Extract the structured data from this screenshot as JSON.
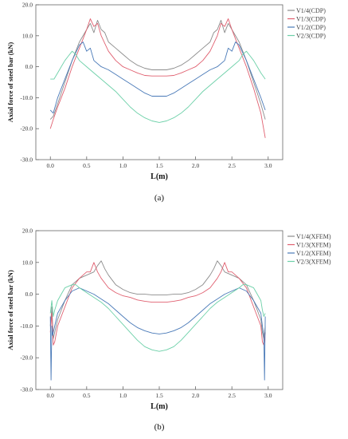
{
  "charts": [
    {
      "caption": "(a)",
      "chart_data": {
        "type": "line",
        "xlabel": "L(m)",
        "ylabel": "Axial force of steel bar (kN)",
        "xlim": [
          -0.2,
          3.2
        ],
        "ylim": [
          -30,
          20
        ],
        "xticks": [
          "0.0",
          "0.5",
          "1.0",
          "1.5",
          "2.0",
          "2.5",
          "3.0"
        ],
        "yticks": [
          "20.0",
          "10.0",
          "0.0",
          "-10.0",
          "-20.0",
          "-30.0"
        ],
        "grid": false,
        "legend": "top-right",
        "series": [
          {
            "name": "V1/4(CDP)",
            "color": "#8c8c8c",
            "x": [
              0.0,
              0.04,
              0.1,
              0.2,
              0.3,
              0.4,
              0.5,
              0.55,
              0.6,
              0.65,
              0.7,
              0.75,
              0.8,
              0.9,
              1.0,
              1.1,
              1.2,
              1.3,
              1.4,
              1.5,
              1.6,
              1.7,
              1.8,
              1.9,
              2.0,
              2.1,
              2.2,
              2.25,
              2.3,
              2.35,
              2.4,
              2.45,
              2.5,
              2.6,
              2.7,
              2.8,
              2.9,
              2.96
            ],
            "y": [
              -17,
              -16,
              -12,
              -5,
              2,
              8,
              12,
              14,
              11,
              15,
              12,
              11,
              8,
              6,
              4,
              2,
              0.5,
              -0.5,
              -1,
              -1,
              -1,
              -0.5,
              0.5,
              2,
              4,
              6,
              8,
              11,
              12,
              15,
              11,
              14,
              12,
              8,
              2,
              -5,
              -12,
              -17
            ]
          },
          {
            "name": "V1/3(CDP)",
            "color": "#e06070",
            "x": [
              0.0,
              0.04,
              0.1,
              0.2,
              0.3,
              0.4,
              0.45,
              0.5,
              0.55,
              0.6,
              0.65,
              0.7,
              0.8,
              0.9,
              1.0,
              1.1,
              1.2,
              1.3,
              1.4,
              1.5,
              1.6,
              1.7,
              1.8,
              1.9,
              2.0,
              2.1,
              2.2,
              2.3,
              2.35,
              2.4,
              2.45,
              2.5,
              2.55,
              2.6,
              2.7,
              2.8,
              2.9,
              2.96
            ],
            "y": [
              -20,
              -17,
              -13,
              -7,
              0,
              6,
              9,
              12,
              15.5,
              13,
              14,
              10,
              5,
              2,
              0,
              -1,
              -2,
              -2.8,
              -3,
              -3,
              -3,
              -2.8,
              -2,
              -1,
              0,
              2,
              5,
              10,
              14,
              13,
              15.5,
              12,
              9,
              6,
              0,
              -7,
              -15,
              -23
            ]
          },
          {
            "name": "V1/2(CDP)",
            "color": "#4a7ab8",
            "x": [
              0.0,
              0.04,
              0.1,
              0.2,
              0.3,
              0.4,
              0.45,
              0.5,
              0.55,
              0.6,
              0.7,
              0.8,
              0.9,
              1.0,
              1.1,
              1.2,
              1.3,
              1.4,
              1.5,
              1.6,
              1.7,
              1.8,
              1.9,
              2.0,
              2.1,
              2.2,
              2.3,
              2.4,
              2.45,
              2.5,
              2.55,
              2.6,
              2.7,
              2.8,
              2.9,
              2.96
            ],
            "y": [
              -14,
              -15,
              -10,
              -4,
              2,
              7,
              8,
              5,
              6,
              2,
              0,
              -1,
              -2.5,
              -4,
              -5.5,
              -7,
              -8.5,
              -9.5,
              -9.5,
              -9.5,
              -8.5,
              -7,
              -5.5,
              -4,
              -2.5,
              -1,
              0,
              2,
              6,
              5,
              8,
              7,
              2,
              -4,
              -10,
              -14
            ]
          },
          {
            "name": "V2/3(CDP)",
            "color": "#6cd0a8",
            "x": [
              0.0,
              0.05,
              0.1,
              0.15,
              0.2,
              0.25,
              0.3,
              0.35,
              0.4,
              0.5,
              0.6,
              0.7,
              0.8,
              0.9,
              1.0,
              1.1,
              1.2,
              1.3,
              1.4,
              1.5,
              1.6,
              1.7,
              1.8,
              1.9,
              2.0,
              2.1,
              2.2,
              2.3,
              2.4,
              2.5,
              2.6,
              2.65,
              2.7,
              2.75,
              2.8,
              2.85,
              2.9,
              2.96
            ],
            "y": [
              -4,
              -4,
              -2,
              0,
              2,
              3.5,
              5,
              4,
              2,
              0,
              -2,
              -4,
              -6,
              -8,
              -10.5,
              -13,
              -15,
              -16.5,
              -17.5,
              -18,
              -17.5,
              -16.5,
              -15,
              -13,
              -10.5,
              -8,
              -6,
              -4,
              -2,
              0,
              2,
              4,
              5,
              3.5,
              2,
              0,
              -2,
              -4
            ]
          }
        ]
      }
    },
    {
      "caption": "(b)",
      "chart_data": {
        "type": "line",
        "xlabel": "L(m)",
        "ylabel": "Axial force of steel bar (kN)",
        "xlim": [
          -0.2,
          3.2
        ],
        "ylim": [
          -30,
          20
        ],
        "xticks": [
          "0.0",
          "0.5",
          "1.0",
          "1.5",
          "2.0",
          "2.5",
          "3.0"
        ],
        "yticks": [
          "20.0",
          "10.0",
          "0.0",
          "-10.0",
          "-20.0",
          "-30.0"
        ],
        "grid": false,
        "legend": "top-right",
        "series": [
          {
            "name": "V1/4(XFEM)",
            "color": "#8c8c8c",
            "x": [
              0.0,
              0.02,
              0.04,
              0.06,
              0.1,
              0.2,
              0.3,
              0.4,
              0.5,
              0.6,
              0.65,
              0.7,
              0.75,
              0.8,
              0.9,
              1.0,
              1.1,
              1.2,
              1.3,
              1.4,
              1.5,
              1.6,
              1.7,
              1.8,
              1.9,
              2.0,
              2.1,
              2.2,
              2.25,
              2.3,
              2.35,
              2.4,
              2.5,
              2.6,
              2.7,
              2.8,
              2.9,
              2.92,
              2.94,
              2.96
            ],
            "y": [
              -10,
              -4,
              -14,
              -12,
              -8,
              -2,
              3,
              5,
              6,
              7,
              9,
              10.5,
              8,
              6,
              3,
              1.5,
              0.5,
              0,
              0,
              -0.2,
              -0.2,
              -0.2,
              0,
              0,
              0.5,
              1.5,
              3,
              6,
              8,
              10.5,
              9,
              7,
              6,
              5,
              3,
              -2,
              -8,
              -12,
              -14,
              -10
            ]
          },
          {
            "name": "V1/3(XFEM)",
            "color": "#e06070",
            "x": [
              0.0,
              0.02,
              0.04,
              0.06,
              0.1,
              0.2,
              0.3,
              0.4,
              0.5,
              0.55,
              0.6,
              0.65,
              0.7,
              0.8,
              0.9,
              1.0,
              1.1,
              1.2,
              1.3,
              1.4,
              1.5,
              1.6,
              1.7,
              1.8,
              1.9,
              2.0,
              2.1,
              2.2,
              2.3,
              2.35,
              2.4,
              2.45,
              2.5,
              2.6,
              2.7,
              2.8,
              2.9,
              2.92,
              2.94,
              2.96
            ],
            "y": [
              -12,
              -6,
              -16,
              -15,
              -10,
              -4,
              2,
              5,
              7,
              7,
              10,
              7,
              5,
              2,
              0.5,
              -0.5,
              -1,
              -1.8,
              -2.2,
              -2.5,
              -2.5,
              -2.5,
              -2.2,
              -1.8,
              -1,
              -0.5,
              0.5,
              2,
              5,
              7,
              10,
              7,
              7,
              5,
              2,
              -4,
              -10,
              -15,
              -16,
              -12
            ]
          },
          {
            "name": "V1/2(XFEM)",
            "color": "#4a7ab8",
            "x": [
              0.0,
              0.01,
              0.02,
              0.03,
              0.04,
              0.06,
              0.1,
              0.2,
              0.3,
              0.4,
              0.5,
              0.6,
              0.7,
              0.8,
              0.9,
              1.0,
              1.1,
              1.2,
              1.3,
              1.4,
              1.5,
              1.6,
              1.7,
              1.8,
              1.9,
              2.0,
              2.1,
              2.2,
              2.3,
              2.4,
              2.5,
              2.6,
              2.7,
              2.8,
              2.9,
              2.92,
              2.94,
              2.95,
              2.96
            ],
            "y": [
              -7,
              -27,
              -10,
              -13,
              -12,
              -10,
              -6,
              -2,
              1,
              2,
              1,
              0,
              -1.5,
              -3,
              -5,
              -7,
              -9,
              -10.5,
              -11.5,
              -12.2,
              -12.5,
              -12.2,
              -11.5,
              -10.5,
              -9,
              -7,
              -5,
              -3,
              -1.5,
              0,
              1,
              2,
              1,
              -2,
              -6,
              -10,
              -13,
              -27,
              -7
            ]
          },
          {
            "name": "V2/3(XFEM)",
            "color": "#6cd0a8",
            "x": [
              0.0,
              0.02,
              0.04,
              0.06,
              0.1,
              0.15,
              0.2,
              0.3,
              0.35,
              0.4,
              0.5,
              0.6,
              0.7,
              0.8,
              0.9,
              1.0,
              1.1,
              1.2,
              1.3,
              1.4,
              1.5,
              1.6,
              1.7,
              1.8,
              1.9,
              2.0,
              2.1,
              2.2,
              2.3,
              2.4,
              2.5,
              2.6,
              2.65,
              2.7,
              2.8,
              2.85,
              2.9,
              2.92,
              2.94,
              2.96
            ],
            "y": [
              -6,
              -2,
              -7,
              -5,
              -2,
              0,
              2,
              3,
              3,
              2,
              0.5,
              -1,
              -2.5,
              -4.5,
              -7,
              -9.5,
              -12,
              -14.5,
              -16.5,
              -17.5,
              -18,
              -17.5,
              -16.5,
              -14.5,
              -12,
              -9.5,
              -7,
              -4.5,
              -2.5,
              -1,
              0.5,
              2,
              3,
              3,
              2,
              0,
              -2,
              -5,
              -7,
              -6
            ]
          }
        ]
      }
    }
  ]
}
